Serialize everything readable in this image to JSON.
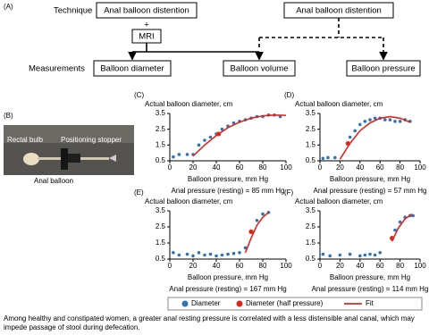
{
  "diagram": {
    "panel_label": "(A)",
    "row_labels": [
      "Technique",
      "Measurements"
    ],
    "technique_nodes": [
      "Anal balloon distention",
      "MRI",
      "Anal balloon distention"
    ],
    "plus": "+",
    "measurement_nodes": [
      "Balloon diameter",
      "Balloon volume",
      "Balloon pressure"
    ]
  },
  "photo": {
    "panel_label": "(B)",
    "labels": [
      "Rectal bulb",
      "Positioning stopper",
      "Anal balloon"
    ]
  },
  "chart_data": [
    {
      "type": "scatter",
      "panel_label": "(C)",
      "title": "Actual balloon diameter, cm",
      "x_label": "Balloon pressure, mm Hg",
      "annotation": "Anal pressure (resting) = 85 mm Hg",
      "xlim": [
        0,
        100
      ],
      "xticks": [
        0,
        20,
        40,
        60,
        80,
        100
      ],
      "ylim": [
        0.5,
        3.5
      ],
      "yticks": [
        0.5,
        1.5,
        2.5,
        3.5
      ],
      "series": [
        {
          "name": "Diameter",
          "color": "#2e75b6",
          "x": [
            3,
            8,
            15,
            20,
            25,
            30,
            35,
            40,
            45,
            50,
            55,
            60,
            65,
            70,
            75,
            80,
            85,
            90,
            95
          ],
          "values": [
            0.75,
            0.9,
            0.9,
            0.9,
            1.5,
            1.8,
            2.0,
            2.2,
            2.5,
            2.7,
            2.9,
            3.0,
            3.1,
            3.2,
            3.3,
            3.3,
            3.4,
            3.4,
            3.3
          ]
        },
        {
          "name": "Diameter (half pressure)",
          "color": "#e0261c",
          "x": [
            42
          ],
          "values": [
            2.2
          ]
        },
        {
          "name": "Fit",
          "color": "#e0261c",
          "kind": "line",
          "x": [
            20,
            30,
            40,
            50,
            60,
            70,
            80,
            90,
            100
          ],
          "values": [
            0.8,
            1.5,
            2.1,
            2.6,
            2.95,
            3.2,
            3.35,
            3.4,
            3.38
          ]
        }
      ]
    },
    {
      "type": "scatter",
      "panel_label": "(D)",
      "title": "Actual balloon diameter, cm",
      "x_label": "Balloon pressure, mm Hg",
      "annotation": "Anal pressure (resting) = 57 mm Hg",
      "xlim": [
        0,
        100
      ],
      "xticks": [
        0,
        20,
        40,
        60,
        80,
        100
      ],
      "ylim": [
        0.5,
        3.5
      ],
      "yticks": [
        0.5,
        1.5,
        2.5,
        3.5
      ],
      "series": [
        {
          "name": "Diameter",
          "color": "#2e75b6",
          "x": [
            3,
            8,
            15,
            30,
            35,
            40,
            45,
            50,
            55,
            60,
            65,
            70,
            75,
            80,
            85,
            90
          ],
          "values": [
            0.65,
            0.7,
            0.7,
            2.0,
            2.4,
            2.8,
            3.0,
            3.1,
            3.2,
            3.2,
            3.1,
            3.1,
            3.0,
            3.0,
            3.1,
            3.0
          ]
        },
        {
          "name": "Diameter (half pressure)",
          "color": "#e0261c",
          "x": [
            28
          ],
          "values": [
            1.6
          ]
        },
        {
          "name": "Fit",
          "color": "#e0261c",
          "kind": "line",
          "x": [
            20,
            30,
            40,
            50,
            60,
            70,
            80,
            90
          ],
          "values": [
            0.6,
            1.6,
            2.4,
            2.9,
            3.2,
            3.3,
            3.2,
            2.95
          ]
        }
      ]
    },
    {
      "type": "scatter",
      "panel_label": "(E)",
      "title": "Actual balloon diameter, cm",
      "x_label": "Balloon pressure, mm Hg",
      "annotation": "Anal pressure (resting) = 167 mm Hg",
      "xlim": [
        0,
        100
      ],
      "xticks": [
        0,
        20,
        40,
        60,
        80,
        100
      ],
      "ylim": [
        0.5,
        3.5
      ],
      "yticks": [
        0.5,
        1.5,
        2.5,
        3.5
      ],
      "series": [
        {
          "name": "Diameter",
          "color": "#2e75b6",
          "x": [
            3,
            8,
            15,
            20,
            25,
            30,
            35,
            40,
            45,
            50,
            55,
            60,
            65,
            75,
            80,
            85
          ],
          "values": [
            0.9,
            0.75,
            0.8,
            0.7,
            0.9,
            0.75,
            0.8,
            0.7,
            0.75,
            0.8,
            0.85,
            0.9,
            1.2,
            2.9,
            3.3,
            3.4
          ]
        },
        {
          "name": "Diameter (half pressure)",
          "color": "#e0261c",
          "x": [
            70
          ],
          "values": [
            2.2
          ]
        },
        {
          "name": "Fit",
          "color": "#e0261c",
          "kind": "line",
          "x": [
            65,
            70,
            75,
            80,
            85
          ],
          "values": [
            0.9,
            1.8,
            2.6,
            3.1,
            3.4
          ]
        }
      ]
    },
    {
      "type": "scatter",
      "panel_label": "(F)",
      "title": "Actual balloon diameter, cm",
      "x_label": "Balloon pressure, mm Hg",
      "annotation": "Anal pressure (resting) = 114 mm Hg",
      "xlim": [
        0,
        100
      ],
      "xticks": [
        0,
        20,
        40,
        60,
        80,
        100
      ],
      "ylim": [
        0.5,
        3.5
      ],
      "yticks": [
        0.5,
        1.5,
        2.5,
        3.5
      ],
      "series": [
        {
          "name": "Diameter",
          "color": "#2e75b6",
          "x": [
            3,
            10,
            20,
            30,
            40,
            45,
            50,
            55,
            60,
            75,
            80,
            85,
            90,
            93
          ],
          "values": [
            0.8,
            0.7,
            0.75,
            0.8,
            0.7,
            0.75,
            0.8,
            0.75,
            0.9,
            2.3,
            2.8,
            3.1,
            3.2,
            3.2
          ]
        },
        {
          "name": "Diameter (half pressure)",
          "color": "#e0261c",
          "x": [
            72
          ],
          "values": [
            1.8
          ]
        },
        {
          "name": "Fit",
          "color": "#e0261c",
          "kind": "line",
          "x": [
            72,
            78,
            85,
            92
          ],
          "values": [
            1.6,
            2.4,
            3.0,
            3.3
          ]
        }
      ]
    }
  ],
  "caption": "Among healthy and constipated women, a greater anal resting pressure is correlated with a less distensible anal canal, which may impede passage of stool during defecation."
}
